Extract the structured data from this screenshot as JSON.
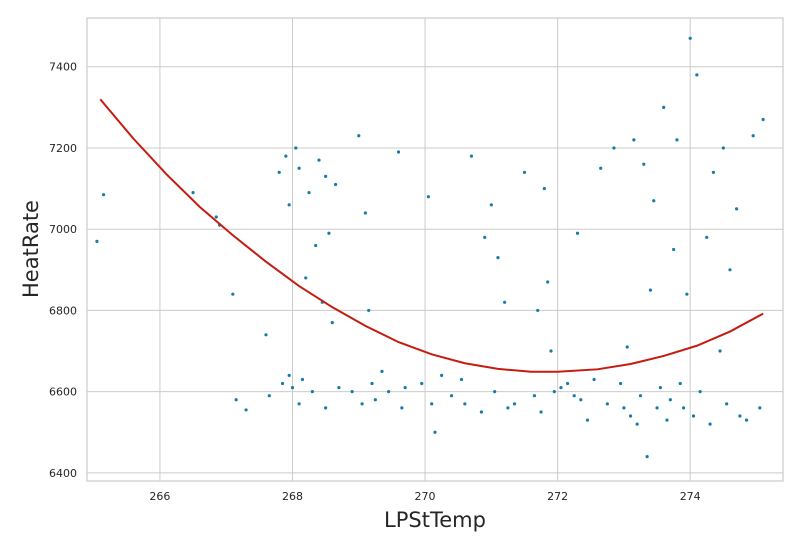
{
  "chart_data": {
    "type": "scatter",
    "title": "",
    "xlabel": "LPStTemp",
    "ylabel": "HeatRate",
    "xlim": [
      264.9,
      275.4
    ],
    "ylim": [
      6380,
      7520
    ],
    "x_ticks": [
      266,
      268,
      270,
      272,
      274
    ],
    "y_ticks": [
      6400,
      6600,
      6800,
      7000,
      7200,
      7400
    ],
    "x_tick_labels": [
      "266",
      "268",
      "270",
      "272",
      "274"
    ],
    "y_tick_labels": [
      "6400",
      "6600",
      "6800",
      "7000",
      "7200",
      "7400"
    ],
    "grid": true,
    "legend": "none",
    "colors": {
      "points": "#1a7ba6",
      "curve": "#c41c10",
      "grid": "#cccccc",
      "frame": "#cccccc"
    },
    "series": [
      {
        "kind": "points",
        "x": [
          265.05,
          265.15,
          266.5,
          266.85,
          266.9,
          267.1,
          267.15,
          267.3,
          267.6,
          267.65,
          267.8,
          267.85,
          267.9,
          267.95,
          267.95,
          268.0,
          268.05,
          268.1,
          268.1,
          268.15,
          268.2,
          268.25,
          268.3,
          268.35,
          268.4,
          268.45,
          268.5,
          268.5,
          268.55,
          268.6,
          268.65,
          268.7,
          268.9,
          269.0,
          269.05,
          269.1,
          269.15,
          269.2,
          269.25,
          269.35,
          269.45,
          269.6,
          269.65,
          269.7,
          269.95,
          270.05,
          270.1,
          270.15,
          270.25,
          270.4,
          270.55,
          270.6,
          270.7,
          270.85,
          270.9,
          271.0,
          271.05,
          271.1,
          271.2,
          271.25,
          271.35,
          271.5,
          271.65,
          271.7,
          271.75,
          271.8,
          271.85,
          271.9,
          271.95,
          272.05,
          272.15,
          272.25,
          272.3,
          272.35,
          272.45,
          272.55,
          272.65,
          272.75,
          272.85,
          272.95,
          273.0,
          273.05,
          273.1,
          273.15,
          273.2,
          273.25,
          273.3,
          273.35,
          273.4,
          273.45,
          273.5,
          273.55,
          273.6,
          273.65,
          273.7,
          273.75,
          273.8,
          273.85,
          273.9,
          273.95,
          274.0,
          274.05,
          274.1,
          274.15,
          274.25,
          274.3,
          274.35,
          274.45,
          274.5,
          274.55,
          274.6,
          274.7,
          274.75,
          274.85,
          274.95,
          275.05,
          275.1
        ],
        "y": [
          6970,
          7085,
          7090,
          7030,
          7010,
          6840,
          6580,
          6555,
          6740,
          6590,
          7140,
          6620,
          7180,
          6640,
          7060,
          6610,
          7200,
          6570,
          7150,
          6630,
          6880,
          7090,
          6600,
          6960,
          7170,
          6820,
          7130,
          6560,
          6990,
          6770,
          7110,
          6610,
          6600,
          7230,
          6570,
          7040,
          6800,
          6620,
          6580,
          6650,
          6600,
          7190,
          6560,
          6610,
          6620,
          7080,
          6570,
          6500,
          6640,
          6590,
          6630,
          6570,
          7180,
          6550,
          6980,
          7060,
          6600,
          6930,
          6820,
          6560,
          6570,
          7140,
          6590,
          6800,
          6550,
          7100,
          6870,
          6700,
          6600,
          6610,
          6620,
          6590,
          6990,
          6580,
          6530,
          6630,
          7150,
          6570,
          7200,
          6620,
          6560,
          6710,
          6540,
          7220,
          6520,
          6590,
          7160,
          6440,
          6850,
          7070,
          6560,
          6610,
          7300,
          6530,
          6580,
          6950,
          7220,
          6620,
          6560,
          6840,
          7470,
          6540,
          7380,
          6600,
          6980,
          6520,
          7140,
          6700,
          7200,
          6570,
          6900,
          7050,
          6540,
          6530,
          7230,
          6560,
          7270
        ]
      },
      {
        "kind": "fit-curve",
        "x": [
          265.1,
          265.6,
          266.1,
          266.6,
          267.1,
          267.6,
          268.1,
          268.6,
          269.1,
          269.6,
          270.1,
          270.6,
          271.1,
          271.6,
          272.0,
          272.6,
          273.1,
          273.6,
          274.1,
          274.6,
          275.1
        ],
        "y": [
          7320,
          7223,
          7135,
          7055,
          6985,
          6920,
          6860,
          6808,
          6762,
          6722,
          6692,
          6670,
          6656,
          6649,
          6649,
          6655,
          6668,
          6688,
          6713,
          6748,
          6792
        ]
      }
    ]
  }
}
